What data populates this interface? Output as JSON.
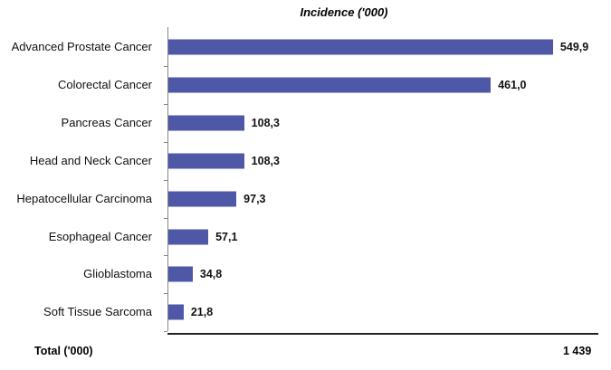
{
  "chart_data": {
    "type": "bar",
    "orientation": "horizontal",
    "title": "Incidence ('000)",
    "categories": [
      "Advanced Prostate Cancer",
      "Colorectal Cancer",
      "Pancreas Cancer",
      "Head and Neck Cancer",
      "Hepatocellular Carcinoma",
      "Esophageal Cancer",
      "Glioblastoma",
      "Soft Tissue Sarcoma"
    ],
    "values": [
      549.9,
      461.0,
      108.3,
      108.3,
      97.3,
      57.1,
      34.8,
      21.8
    ],
    "value_labels": [
      "549,9",
      "461,0",
      "108,3",
      "108,3",
      "97,3",
      "57,1",
      "34,8",
      "21,8"
    ],
    "color": "#4e58a6",
    "xlim": [
      0,
      550
    ],
    "total_label": "Total ('000)",
    "total_value": "1 439"
  }
}
